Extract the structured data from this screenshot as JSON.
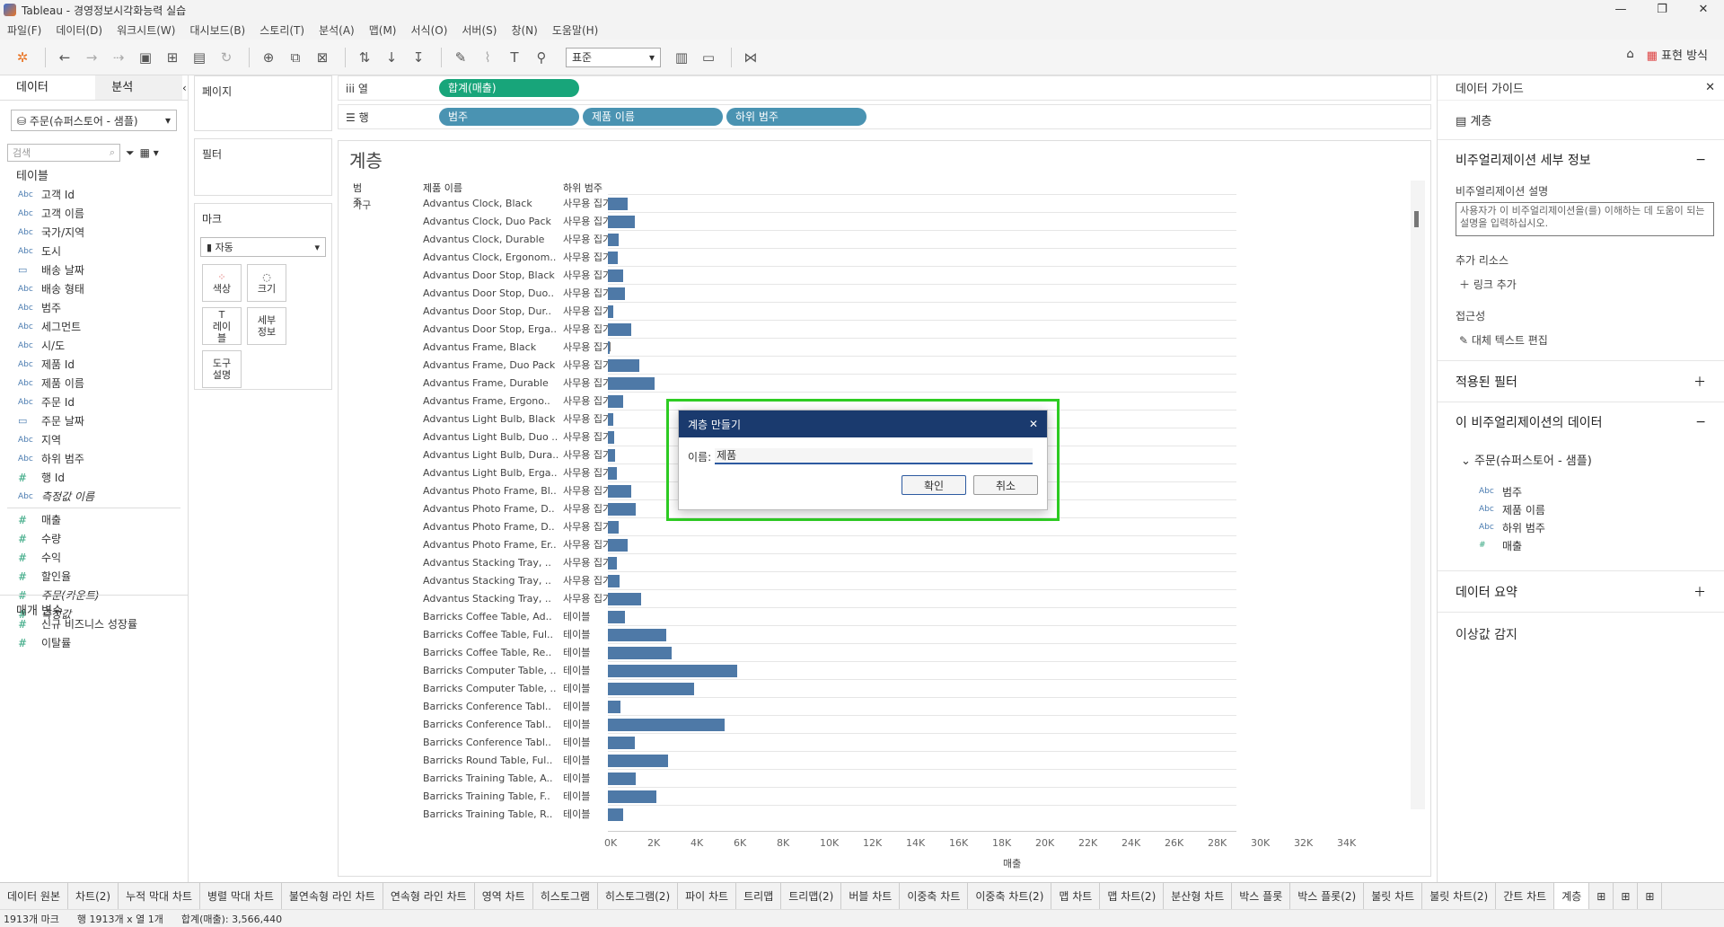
{
  "window": {
    "title": "Tableau - 경영정보시각화능력 실습"
  },
  "menu": [
    "파일(F)",
    "데이터(D)",
    "워크시트(W)",
    "대시보드(B)",
    "스토리(T)",
    "분석(A)",
    "맵(M)",
    "서식(O)",
    "서버(S)",
    "창(N)",
    "도움말(H)"
  ],
  "toolbar": {
    "fit_select": "표준",
    "show_me": "표현 방식"
  },
  "left_pane": {
    "tab_data": "데이터",
    "tab_analysis": "분석",
    "datasource": "주문(슈퍼스토어 - 샘플)",
    "search_placeholder": "검색",
    "tables_header": "테이블",
    "fields": [
      {
        "type": "Abc",
        "name": "고객 Id"
      },
      {
        "type": "Abc",
        "name": "고객 이름"
      },
      {
        "type": "Abc",
        "name": "국가/지역"
      },
      {
        "type": "Abc",
        "name": "도시"
      },
      {
        "type": "date",
        "name": "배송 날짜"
      },
      {
        "type": "Abc",
        "name": "배송 형태"
      },
      {
        "type": "Abc",
        "name": "범주"
      },
      {
        "type": "Abc",
        "name": "세그먼트"
      },
      {
        "type": "Abc",
        "name": "시/도"
      },
      {
        "type": "Abc",
        "name": "제품 Id"
      },
      {
        "type": "Abc",
        "name": "제품 이름"
      },
      {
        "type": "Abc",
        "name": "주문 Id"
      },
      {
        "type": "date",
        "name": "주문 날짜"
      },
      {
        "type": "Abc",
        "name": "지역"
      },
      {
        "type": "Abc",
        "name": "하위 범주"
      },
      {
        "type": "#",
        "name": "행 Id"
      },
      {
        "type": "Abc",
        "name": "측정값 이름"
      }
    ],
    "measures": [
      {
        "type": "#",
        "name": "매출"
      },
      {
        "type": "#",
        "name": "수량"
      },
      {
        "type": "#",
        "name": "수익"
      },
      {
        "type": "#",
        "name": "할인율"
      },
      {
        "type": "#",
        "name": "주문(카운트)"
      },
      {
        "type": "#",
        "name": "측정값"
      }
    ],
    "params_header": "매개 변수",
    "params": [
      {
        "type": "#",
        "name": "신규 비즈니스 성장률"
      },
      {
        "type": "#",
        "name": "이탈률"
      }
    ]
  },
  "cards": {
    "pages": "페이지",
    "filters": "필터",
    "marks": "마크",
    "mark_type": "자동",
    "mark_buttons": [
      "색상",
      "크기",
      "레이블",
      "세부 정보",
      "도구 설명"
    ]
  },
  "shelves": {
    "columns_label": "열",
    "rows_label": "행",
    "columns": [
      "합계(매출)"
    ],
    "rows": [
      "범주",
      "제품 이름",
      "하위 범주"
    ]
  },
  "viz": {
    "title": "계층",
    "col_headers": [
      "범주",
      "제품 이름",
      "하위 범주"
    ],
    "category": "가구",
    "axis_title": "매출",
    "ticks": [
      "0K",
      "2K",
      "4K",
      "6K",
      "8K",
      "10K",
      "12K",
      "14K",
      "16K",
      "18K",
      "20K",
      "22K",
      "24K",
      "26K",
      "28K",
      "30K",
      "32K",
      "34K"
    ]
  },
  "chart_data": {
    "type": "bar",
    "xlabel": "매출",
    "xlim": [
      0,
      36000
    ],
    "rows": [
      {
        "product": "Advantus Clock, Black",
        "sub": "사무용 집기",
        "value": 900
      },
      {
        "product": "Advantus Clock, Duo Pack",
        "sub": "사무용 집기",
        "value": 1250
      },
      {
        "product": "Advantus Clock, Durable",
        "sub": "사무용 집기",
        "value": 500
      },
      {
        "product": "Advantus Clock, Ergonom..",
        "sub": "사무용 집기",
        "value": 450
      },
      {
        "product": "Advantus Door Stop, Black",
        "sub": "사무용 집기",
        "value": 700
      },
      {
        "product": "Advantus Door Stop, Duo..",
        "sub": "사무용 집기",
        "value": 800
      },
      {
        "product": "Advantus Door Stop, Dur..",
        "sub": "사무용 집기",
        "value": 250
      },
      {
        "product": "Advantus Door Stop, Erga..",
        "sub": "사무용 집기",
        "value": 1100
      },
      {
        "product": "Advantus Frame, Black",
        "sub": "사무용 집기",
        "value": 80
      },
      {
        "product": "Advantus Frame, Duo Pack",
        "sub": "사무용 집기",
        "value": 1450
      },
      {
        "product": "Advantus Frame, Durable",
        "sub": "사무용 집기",
        "value": 2150
      },
      {
        "product": "Advantus Frame, Ergono..",
        "sub": "사무용 집기",
        "value": 700
      },
      {
        "product": "Advantus Light Bulb, Black",
        "sub": "사무용 집기",
        "value": 250
      },
      {
        "product": "Advantus Light Bulb, Duo ..",
        "sub": "사무용 집기",
        "value": 300
      },
      {
        "product": "Advantus Light Bulb, Dura..",
        "sub": "사무용 집기",
        "value": 350
      },
      {
        "product": "Advantus Light Bulb, Erga..",
        "sub": "사무용 집기",
        "value": 400
      },
      {
        "product": "Advantus Photo Frame, Bl..",
        "sub": "사무용 집기",
        "value": 1100
      },
      {
        "product": "Advantus Photo Frame, D..",
        "sub": "사무용 집기",
        "value": 1300
      },
      {
        "product": "Advantus Photo Frame, D..",
        "sub": "사무용 집기",
        "value": 500
      },
      {
        "product": "Advantus Photo Frame, Er..",
        "sub": "사무용 집기",
        "value": 900
      },
      {
        "product": "Advantus Stacking Tray, ..",
        "sub": "사무용 집기",
        "value": 400
      },
      {
        "product": "Advantus Stacking Tray, ..",
        "sub": "사무용 집기",
        "value": 550
      },
      {
        "product": "Advantus Stacking Tray, ..",
        "sub": "사무용 집기",
        "value": 1550
      },
      {
        "product": "Barricks Coffee Table, Ad..",
        "sub": "테이블",
        "value": 800
      },
      {
        "product": "Barricks Coffee Table, Ful..",
        "sub": "테이블",
        "value": 2700
      },
      {
        "product": "Barricks Coffee Table, Re..",
        "sub": "테이블",
        "value": 2950
      },
      {
        "product": "Barricks Computer Table, ..",
        "sub": "테이블",
        "value": 6000
      },
      {
        "product": "Barricks Computer Table, ..",
        "sub": "테이블",
        "value": 4000
      },
      {
        "product": "Barricks Conference Tabl..",
        "sub": "테이블",
        "value": 600
      },
      {
        "product": "Barricks Conference Tabl..",
        "sub": "테이블",
        "value": 5400
      },
      {
        "product": "Barricks Conference Tabl..",
        "sub": "테이블",
        "value": 1250
      },
      {
        "product": "Barricks Round Table, Ful..",
        "sub": "테이블",
        "value": 2800
      },
      {
        "product": "Barricks Training Table, A..",
        "sub": "테이블",
        "value": 1300
      },
      {
        "product": "Barricks Training Table, F..",
        "sub": "테이블",
        "value": 2250
      },
      {
        "product": "Barricks Training Table, R..",
        "sub": "테이블",
        "value": 700
      }
    ]
  },
  "right_pane": {
    "title": "데이터 가이드",
    "sheet": "계층",
    "viz_details": "비주얼리제이션 세부 정보",
    "desc_label": "비주얼리제이션 설명",
    "desc_placeholder": "사용자가 이 비주얼리제이션을(를) 이해하는 데 도움이 되는 설명을 입력하십시오.",
    "resources": "추가 리소스",
    "add_link": "링크 추가",
    "accessibility": "접근성",
    "alt_text": "대체 텍스트 편집",
    "applied_filters": "적용된 필터",
    "viz_data": "이 비주얼리제이션의 데이터",
    "datasource": "주문(슈퍼스토어 - 샘플)",
    "used_fields": [
      {
        "type": "Abc",
        "name": "범주"
      },
      {
        "type": "Abc",
        "name": "제품 이름"
      },
      {
        "type": "Abc",
        "name": "하위 범주"
      },
      {
        "type": "#",
        "name": "매출"
      }
    ],
    "data_summary": "데이터 요약",
    "outliers": "이상값 감지"
  },
  "dialog": {
    "title": "계층 만들기",
    "name_label": "이름:",
    "name_value": "제품",
    "ok": "확인",
    "cancel": "취소"
  },
  "sheet_tabs": [
    "데이터 원본",
    "차트(2)",
    "누적 막대 차트",
    "병렬 막대 차트",
    "불연속형 라인 차트",
    "연속형 라인 차트",
    "영역 차트",
    "히스토그램",
    "히스토그램(2)",
    "파이 차트",
    "트리맵",
    "트리맵(2)",
    "버블 차트",
    "이중축 차트",
    "이중축 차트(2)",
    "맵 차트",
    "맵 차트(2)",
    "분산형 차트",
    "박스 플롯",
    "박스 플롯(2)",
    "불릿 차트",
    "불릿 차트(2)",
    "간트 차트",
    "계층"
  ],
  "status": {
    "marks": "1913개 마크",
    "dims": "행 1913개 x 열 1개",
    "sum": "합계(매출): 3,566,440"
  }
}
